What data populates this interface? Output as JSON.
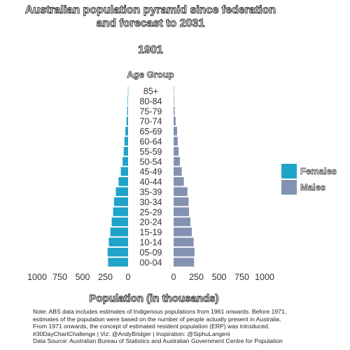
{
  "chart_data": {
    "type": "bar",
    "title": "Australian population pyramid since federation and forecast to 2031",
    "year": "1901",
    "age_axis_title": "Age Group",
    "xlabel": "Population (in thousands)",
    "categories": [
      "00-04",
      "05-09",
      "10-14",
      "15-19",
      "20-24",
      "25-29",
      "30-34",
      "35-39",
      "40-44",
      "45-49",
      "50-54",
      "55-59",
      "60-64",
      "65-69",
      "70-74",
      "75-79",
      "80-84",
      "85+"
    ],
    "series": [
      {
        "name": "Females",
        "color": "#1fa3c9",
        "values": [
          220,
          225,
          212,
          195,
          180,
          165,
          155,
          135,
          105,
          80,
          60,
          48,
          40,
          30,
          18,
          10,
          5,
          2
        ]
      },
      {
        "name": "Males",
        "color": "#8392b0",
        "values": [
          225,
          230,
          220,
          200,
          185,
          170,
          165,
          152,
          112,
          90,
          70,
          55,
          45,
          38,
          22,
          12,
          6,
          3
        ]
      }
    ],
    "x_ticks_left": [
      "1000",
      "750",
      "500",
      "250",
      "0"
    ],
    "x_ticks_right": [
      "0",
      "250",
      "500",
      "750",
      "1000"
    ],
    "xlim": [
      0,
      1000
    ],
    "grid": false,
    "legend_position": "right"
  },
  "note_lines": [
    "Note: ABS data includes estimates of Indigenous populations from 1961 onwards. Before 1971,",
    "estimates of the population were based on the number of people actually present in Australia.",
    "From 1971 onwards, the concept of estimated resident population (ERP) was introduced.",
    "#30DayChartChallenge | Viz: @AndyBridger | Inspiration: @SiphuLangeni",
    "Data Source: Australian Bureau of Statistics and Australian Government Centre for Population"
  ]
}
